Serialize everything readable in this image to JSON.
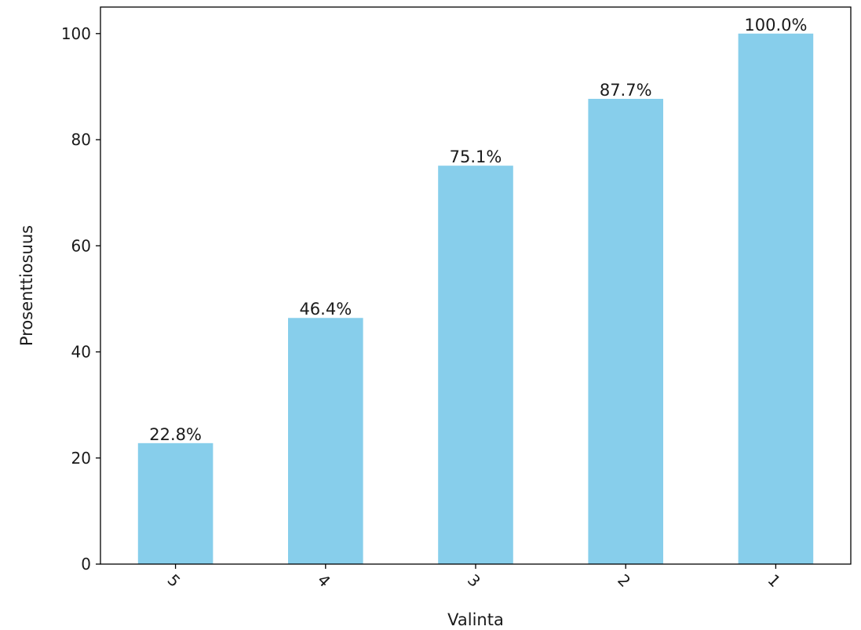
{
  "chart_data": {
    "type": "bar",
    "categories": [
      "5",
      "4",
      "3",
      "2",
      "1"
    ],
    "values": [
      22.8,
      46.4,
      75.1,
      87.7,
      100.0
    ],
    "data_labels": [
      "22.8%",
      "46.4%",
      "75.1%",
      "87.7%",
      "100.0%"
    ],
    "xlabel": "Valinta",
    "ylabel": "Prosenttiosuus",
    "ylim": [
      0,
      105
    ],
    "yticks": [
      0,
      20,
      40,
      60,
      80,
      100
    ],
    "bar_color": "#87CEEB",
    "grid": false,
    "xtick_rotation_deg": 45
  }
}
